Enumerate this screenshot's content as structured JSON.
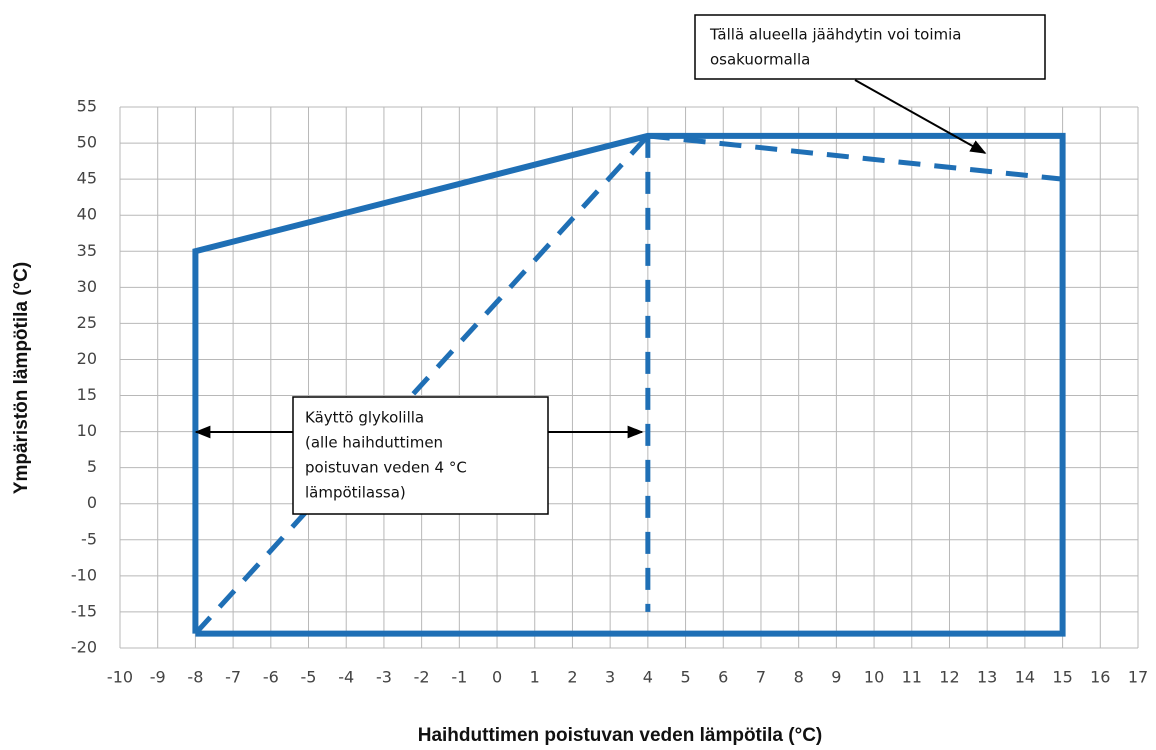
{
  "chart_data": {
    "type": "line",
    "x_label": "Haihduttimen poistuvan veden lämpötila (°C)",
    "y_label": "Ympäristön lämpötila (°C)",
    "xlim": [
      -10,
      17
    ],
    "ylim": [
      -20,
      55
    ],
    "xticks": [
      -10,
      -9,
      -8,
      -7,
      -6,
      -5,
      -4,
      -3,
      -2,
      -1,
      0,
      1,
      2,
      3,
      4,
      5,
      6,
      7,
      8,
      9,
      10,
      11,
      12,
      13,
      14,
      15,
      16,
      17
    ],
    "yticks": [
      -20,
      -15,
      -10,
      -5,
      0,
      5,
      10,
      15,
      20,
      25,
      30,
      35,
      40,
      45,
      50,
      55
    ],
    "grid": true,
    "series": [
      {
        "color": "#1f6fb5",
        "dash": false,
        "x": [
          -8,
          -8,
          4,
          15,
          15,
          -8
        ],
        "values": [
          -18,
          35,
          51,
          51,
          -18,
          -18
        ]
      },
      {
        "color": "#1f6fb5",
        "dash": true,
        "x": [
          -8,
          4
        ],
        "values": [
          -18,
          51
        ]
      },
      {
        "color": "#1f6fb5",
        "dash": true,
        "x": [
          4,
          4
        ],
        "values": [
          51,
          -15
        ]
      },
      {
        "color": "#1f6fb5",
        "dash": true,
        "x": [
          4,
          15
        ],
        "values": [
          51,
          45
        ]
      }
    ],
    "annotations": [
      {
        "lines": [
          "Tällä alueella jäähdytin voi toimia",
          "osakuormalla"
        ]
      },
      {
        "lines": [
          "Käyttö glykolilla",
          "(alle  haihduttimen",
          "poistuvan veden 4  °C",
          "lämpötilassa)"
        ]
      }
    ]
  }
}
